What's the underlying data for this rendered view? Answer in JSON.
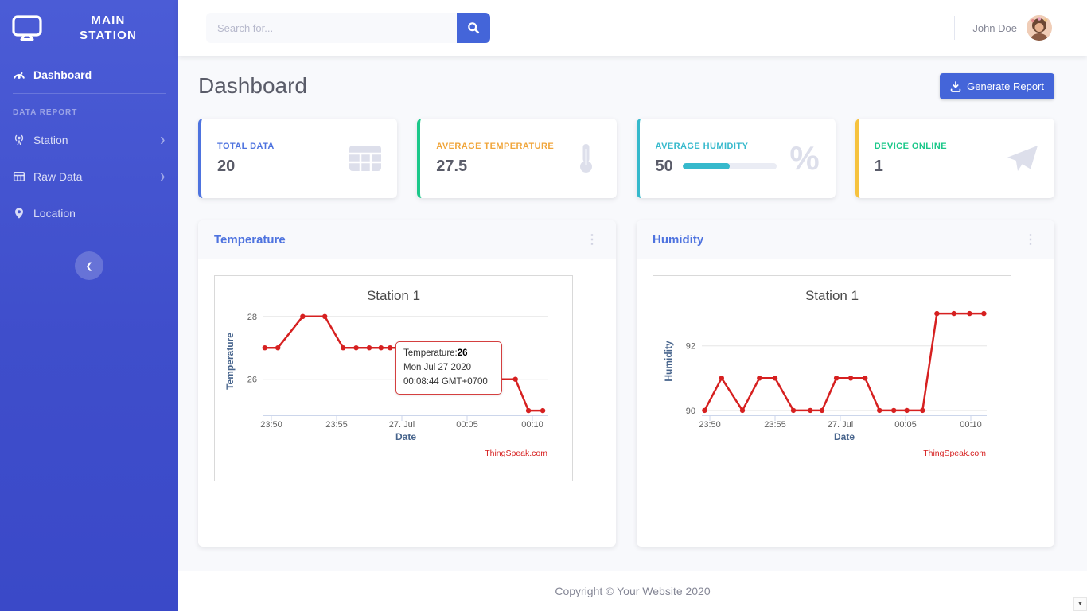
{
  "sidebar": {
    "brand_line1": "MAIN",
    "brand_line2": "STATION",
    "section_heading": "DATA REPORT",
    "items": [
      {
        "label": "Dashboard",
        "icon": "tachometer-icon",
        "active": true
      },
      {
        "label": "Station",
        "icon": "station-icon",
        "has_submenu": true
      },
      {
        "label": "Raw Data",
        "icon": "table-icon",
        "has_submenu": true
      },
      {
        "label": "Location",
        "icon": "map-marker-icon",
        "has_submenu": false
      }
    ]
  },
  "topbar": {
    "search_placeholder": "Search for...",
    "user_name": "John Doe"
  },
  "page": {
    "title": "Dashboard",
    "generate_report_label": "Generate Report"
  },
  "stat_cards": [
    {
      "label": "TOTAL DATA",
      "value": "20",
      "accent": "#4e73df",
      "label_color": "#4e73df",
      "icon": "table-icon"
    },
    {
      "label": "AVERAGE TEMPERATURE",
      "value": "27.5",
      "accent": "#1cc88a",
      "label_color": "#f0a63c",
      "icon": "thermometer-icon"
    },
    {
      "label": "AVERAGE HUMIDITY",
      "value": "50",
      "accent": "#36b9cc",
      "label_color": "#36b9cc",
      "icon": "percent-icon",
      "progress_pct": 50,
      "progress_color": "#36b9cc"
    },
    {
      "label": "DEVICE ONLINE",
      "value": "1",
      "accent": "#f6c23e",
      "label_color": "#1cc88a",
      "icon": "paper-plane-icon"
    }
  ],
  "panels": [
    {
      "title": "Temperature"
    },
    {
      "title": "Humidity"
    }
  ],
  "footer": {
    "copyright": "Copyright © Your Website 2020"
  },
  "chart_data": [
    {
      "type": "line",
      "title": "Station 1",
      "xlabel": "Date",
      "ylabel": "Temperature",
      "legend": "off",
      "grid": "horizontal",
      "series_color": "#d62020",
      "x_ticks": [
        {
          "minute": 0,
          "label": "23:50"
        },
        {
          "minute": 5,
          "label": "23:55"
        },
        {
          "minute": 10,
          "label": "27. Jul"
        },
        {
          "minute": 15,
          "label": "00:05"
        },
        {
          "minute": 20,
          "label": "00:10"
        }
      ],
      "y_ticks": [
        26,
        28
      ],
      "ylim": [
        24.85,
        28.3
      ],
      "points": [
        [
          -0.5,
          27
        ],
        [
          0.5,
          27
        ],
        [
          2.4,
          28
        ],
        [
          4.1,
          28
        ],
        [
          5.5,
          27
        ],
        [
          6.5,
          27
        ],
        [
          7.5,
          27
        ],
        [
          8.4,
          27
        ],
        [
          9.1,
          27
        ],
        [
          10.5,
          27
        ],
        [
          12,
          27
        ],
        [
          13.5,
          27
        ],
        [
          15,
          27
        ],
        [
          16.5,
          26
        ],
        [
          18.7,
          26
        ],
        [
          19.7,
          25
        ],
        [
          20.8,
          25
        ]
      ],
      "watermark": "ThingSpeak.com",
      "tooltip": {
        "series_label": "Temperature:",
        "value": "26",
        "date_line": "Mon Jul 27 2020",
        "time_line": "00:08:44 GMT+0700"
      }
    },
    {
      "type": "line",
      "title": "Station 1",
      "xlabel": "Date",
      "ylabel": "Humidity",
      "legend": "off",
      "grid": "horizontal",
      "series_color": "#d62020",
      "x_ticks": [
        {
          "minute": 0,
          "label": "23:50"
        },
        {
          "minute": 5,
          "label": "23:55"
        },
        {
          "minute": 10,
          "label": "27. Jul"
        },
        {
          "minute": 15,
          "label": "00:05"
        },
        {
          "minute": 20,
          "label": "00:10"
        }
      ],
      "y_ticks": [
        90,
        92
      ],
      "ylim": [
        89.85,
        93.2
      ],
      "points": [
        [
          -0.4,
          90
        ],
        [
          0.9,
          91
        ],
        [
          2.5,
          90
        ],
        [
          3.8,
          91
        ],
        [
          5,
          91
        ],
        [
          6.4,
          90
        ],
        [
          7.7,
          90
        ],
        [
          8.6,
          90
        ],
        [
          9.7,
          91
        ],
        [
          10.8,
          91
        ],
        [
          11.9,
          91
        ],
        [
          13,
          90
        ],
        [
          14.1,
          90
        ],
        [
          15.1,
          90
        ],
        [
          16.3,
          90
        ],
        [
          17.4,
          93
        ],
        [
          18.7,
          93
        ],
        [
          19.9,
          93
        ],
        [
          21,
          93
        ]
      ],
      "watermark": "ThingSpeak.com"
    }
  ]
}
